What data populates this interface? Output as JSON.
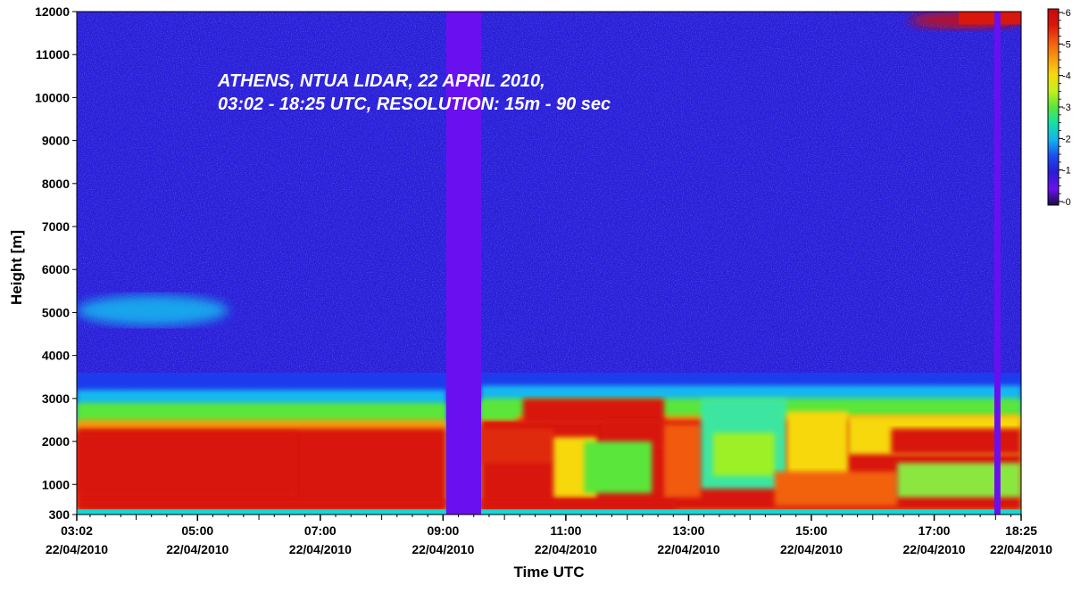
{
  "chart_data": {
    "type": "heatmap",
    "title_lines": [
      "ATHENS, NTUA LIDAR, 22 APRIL 2010,",
      "03:02 - 18:25 UTC, RESOLUTION: 15m - 90 sec"
    ],
    "xlabel": "Time UTC",
    "ylabel": "Height [m]",
    "x_ticks": [
      {
        "time": "03:02",
        "date": "22/04/2010",
        "hours": 3.033
      },
      {
        "time": "05:00",
        "date": "22/04/2010",
        "hours": 5.0
      },
      {
        "time": "07:00",
        "date": "22/04/2010",
        "hours": 7.0
      },
      {
        "time": "09:00",
        "date": "22/04/2010",
        "hours": 9.0
      },
      {
        "time": "11:00",
        "date": "22/04/2010",
        "hours": 11.0
      },
      {
        "time": "13:00",
        "date": "22/04/2010",
        "hours": 13.0
      },
      {
        "time": "15:00",
        "date": "22/04/2010",
        "hours": 15.0
      },
      {
        "time": "17:00",
        "date": "22/04/2010",
        "hours": 17.0
      },
      {
        "time": "18:25",
        "date": "22/04/2010",
        "hours": 18.417
      }
    ],
    "y_ticks": [
      300,
      1000,
      2000,
      3000,
      4000,
      5000,
      6000,
      7000,
      8000,
      9000,
      10000,
      11000,
      12000
    ],
    "xlim_hours": [
      3.033,
      18.417
    ],
    "ylim": [
      300,
      12000
    ],
    "colorbar": {
      "range": [
        0,
        6
      ],
      "ticks": [
        0,
        1,
        2,
        3,
        4,
        5,
        6
      ],
      "stops": [
        "#1a0c4a",
        "#6a10f0",
        "#2a1bd6",
        "#1a4cf0",
        "#13b3ef",
        "#14e0a8",
        "#5ae63a",
        "#c4f01c",
        "#f6d80e",
        "#f79a0e",
        "#f25a0e",
        "#d8180c",
        "#c8080a"
      ]
    },
    "data_gaps_hours": [
      [
        9.05,
        9.62
      ],
      [
        17.98,
        18.08
      ]
    ],
    "layers": [
      {
        "name": "boundary-layer",
        "hours": [
          3.033,
          9.05
        ],
        "top_m": 2900,
        "core_m": [
          500,
          2300
        ],
        "value_top": 3,
        "value_core": 6
      },
      {
        "name": "upper-aerosol",
        "hours": [
          3.033,
          5.5
        ],
        "range_m": [
          4700,
          5400
        ],
        "value": 2
      },
      {
        "name": "afternoon-layer",
        "hours": [
          9.62,
          18.417
        ],
        "top_m": 3000,
        "core_m": [
          400,
          2500
        ],
        "value_top": 3,
        "value_core": 6
      },
      {
        "name": "cirrus",
        "hours": [
          16.6,
          18.417
        ],
        "range_m": [
          11600,
          12000
        ],
        "value": 6
      }
    ]
  }
}
